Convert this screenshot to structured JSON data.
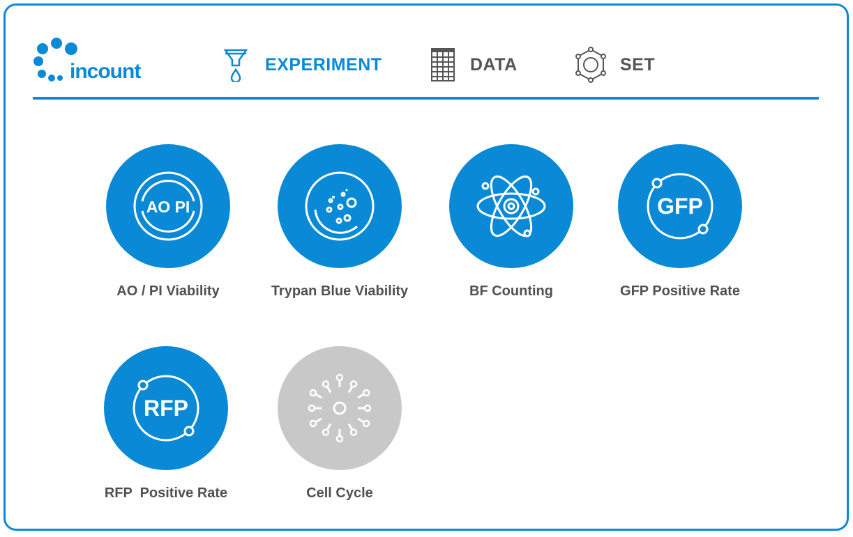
{
  "app": {
    "logo_text": "incount"
  },
  "nav": [
    {
      "label": "EXPERIMENT",
      "icon": "funnel-drop-icon",
      "active": true
    },
    {
      "label": "DATA",
      "icon": "grid-table-icon",
      "active": false
    },
    {
      "label": "SET",
      "icon": "hexagon-settings-icon",
      "active": false
    }
  ],
  "colors": {
    "accent": "#0a8ad6",
    "inactive_nav": "#555555",
    "disabled": "#c8c8c8",
    "label": "#505050"
  },
  "experiments": [
    {
      "label": "AO / PI Viability",
      "icon_text": "AO PI",
      "icon": "ao-pi-icon",
      "enabled": true
    },
    {
      "label": "Trypan Blue Viability",
      "icon": "petri-dish-icon",
      "enabled": true
    },
    {
      "label": "BF Counting",
      "icon": "atom-icon",
      "enabled": true
    },
    {
      "label": "GFP Positive Rate",
      "icon_text": "GFP",
      "icon": "gfp-icon",
      "enabled": true
    },
    {
      "label": "RFP  Positive Rate",
      "icon_text": "RFP",
      "icon": "rfp-icon",
      "enabled": true
    },
    {
      "label": "Cell Cycle",
      "icon": "cell-cycle-icon",
      "enabled": false
    }
  ]
}
